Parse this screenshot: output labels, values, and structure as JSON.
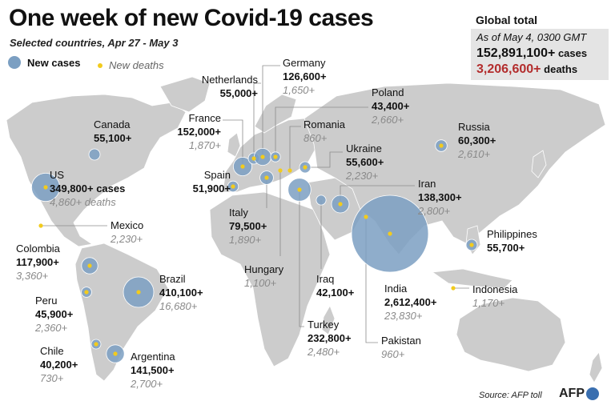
{
  "title": "One week of new Covid-19 cases",
  "subtitle": "Selected countries, Apr 27 - May 3",
  "legend": {
    "cases": "New cases",
    "deaths": "New deaths"
  },
  "global": {
    "heading": "Global total",
    "as_of": "As of May 4, 0300 GMT",
    "cases": "152,891,100+",
    "cases_unit": "cases",
    "deaths": "3,206,600+",
    "deaths_unit": "deaths"
  },
  "colors": {
    "cases": "#7b9fc2",
    "deaths": "#f2cb1d",
    "land": "#cccccc",
    "deaths_total": "#b32d2d"
  },
  "countries": [
    {
      "key": "us",
      "name": "US",
      "cases": "349,800+ cases",
      "deaths": "4,860+ deaths",
      "new_cases": 349800
    },
    {
      "key": "canada",
      "name": "Canada",
      "cases": "55,100+",
      "deaths": "",
      "new_cases": 55100
    },
    {
      "key": "mexico",
      "name": "Mexico",
      "cases": "",
      "deaths": "2,230+",
      "new_cases": 0
    },
    {
      "key": "colombia",
      "name": "Colombia",
      "cases": "117,900+",
      "deaths": "3,360+",
      "new_cases": 117900
    },
    {
      "key": "peru",
      "name": "Peru",
      "cases": "45,900+",
      "deaths": "2,360+",
      "new_cases": 45900
    },
    {
      "key": "chile",
      "name": "Chile",
      "cases": "40,200+",
      "deaths": "730+",
      "new_cases": 40200
    },
    {
      "key": "brazil",
      "name": "Brazil",
      "cases": "410,100+",
      "deaths": "16,680+",
      "new_cases": 410100
    },
    {
      "key": "argentina",
      "name": "Argentina",
      "cases": "141,500+",
      "deaths": "2,700+",
      "new_cases": 141500
    },
    {
      "key": "spain",
      "name": "Spain",
      "cases": "51,900+",
      "deaths": "",
      "new_cases": 51900
    },
    {
      "key": "france",
      "name": "France",
      "cases": "152,000+",
      "deaths": "1,870+",
      "new_cases": 152000
    },
    {
      "key": "netherlands",
      "name": "Netherlands",
      "cases": "55,000+",
      "deaths": "",
      "new_cases": 55000
    },
    {
      "key": "germany",
      "name": "Germany",
      "cases": "126,600+",
      "deaths": "1,650+",
      "new_cases": 126600
    },
    {
      "key": "poland",
      "name": "Poland",
      "cases": "43,400+",
      "deaths": "2,660+",
      "new_cases": 43400
    },
    {
      "key": "romania",
      "name": "Romania",
      "cases": "",
      "deaths": "860+",
      "new_cases": 0
    },
    {
      "key": "ukraine",
      "name": "Ukraine",
      "cases": "55,600+",
      "deaths": "2,230+",
      "new_cases": 55600
    },
    {
      "key": "italy",
      "name": "Italy",
      "cases": "79,500+",
      "deaths": "1,890+",
      "new_cases": 79500
    },
    {
      "key": "hungary",
      "name": "Hungary",
      "cases": "",
      "deaths": "1,100+",
      "new_cases": 0
    },
    {
      "key": "turkey",
      "name": "Turkey",
      "cases": "232,800+",
      "deaths": "2,480+",
      "new_cases": 232800
    },
    {
      "key": "iraq",
      "name": "Iraq",
      "cases": "42,100+",
      "deaths": "",
      "new_cases": 42100
    },
    {
      "key": "iran",
      "name": "Iran",
      "cases": "138,300+",
      "deaths": "2,800+",
      "new_cases": 138300
    },
    {
      "key": "russia",
      "name": "Russia",
      "cases": "60,300+",
      "deaths": "2,610+",
      "new_cases": 60300
    },
    {
      "key": "india",
      "name": "India",
      "cases": "2,612,400+",
      "deaths": "23,830+",
      "new_cases": 2612400
    },
    {
      "key": "pakistan",
      "name": "Pakistan",
      "cases": "",
      "deaths": "960+",
      "new_cases": 0
    },
    {
      "key": "philippines",
      "name": "Philippines",
      "cases": "55,700+",
      "deaths": "",
      "new_cases": 55700
    },
    {
      "key": "indonesia",
      "name": "Indonesia",
      "cases": "",
      "deaths": "1,170+",
      "new_cases": 0
    }
  ],
  "source": "Source: AFP toll",
  "logo": "AFP"
}
